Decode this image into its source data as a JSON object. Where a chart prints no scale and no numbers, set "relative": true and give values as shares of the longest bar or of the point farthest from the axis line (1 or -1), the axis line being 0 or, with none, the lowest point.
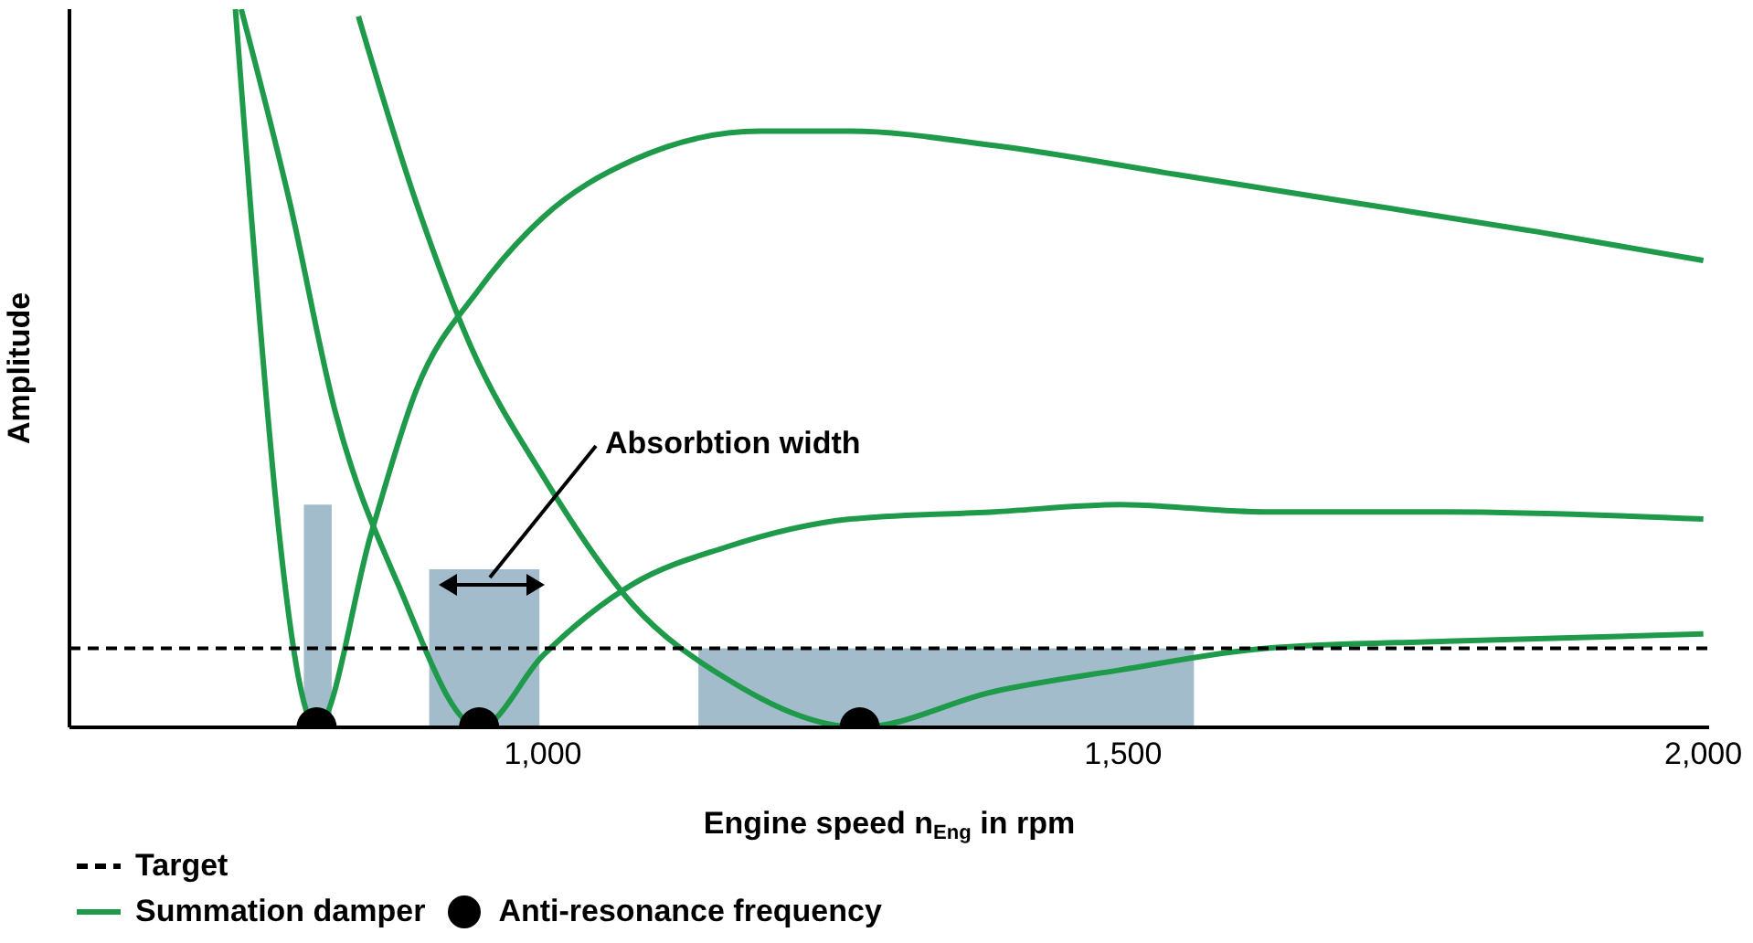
{
  "chart_data": {
    "type": "line",
    "relative": true,
    "xlabel": "Engine speed n$_{Eng}$ in rpm",
    "ylabel": "Amplitude",
    "xlim": [
      592,
      2005
    ],
    "xticks": [
      {
        "value": 1000,
        "label": "1,000"
      },
      {
        "value": 1500,
        "label": "1,500"
      },
      {
        "value": 2000,
        "label": "2,000"
      }
    ],
    "legend": "bottom left",
    "line_style": "solid",
    "annotations": [
      "Absorbtion width"
    ],
    "ref_lines": [
      {
        "axis": "y",
        "value": 0.11,
        "label": "Target",
        "color": "#000000",
        "line_style": "dashed"
      }
    ],
    "series": [
      {
        "type": "area",
        "color": "#a3bccb",
        "x": [
          794,
          818,
          860,
          902,
          997,
          1065,
          1134,
          1561
        ],
        "values": [
          0.31,
          0.31,
          null,
          0.22,
          0.22,
          null,
          0.11,
          0.11
        ]
      },
      {
        "name": "Summation damper",
        "color": "#1e9a4a",
        "x": [
          735,
          805,
          852,
          891,
          945,
          1000,
          1078,
          1187,
          1265,
          1389,
          1545,
          1701,
          1857,
          2000
        ],
        "values": [
          1.0,
          0,
          0.27,
          0.47,
          0.61,
          0.71,
          0.79,
          0.83,
          0.83,
          0.81,
          0.77,
          0.73,
          0.69,
          0.65
        ]
      },
      {
        "color": "#1e9a4a",
        "x": [
          740,
          782,
          821,
          875,
          945,
          1000,
          1078,
          1156,
          1265,
          1389,
          1498,
          1623,
          1779,
          2000
        ],
        "values": [
          1.0,
          0.73,
          0.44,
          0.2,
          0,
          0.1,
          0.2,
          0.25,
          0.29,
          0.3,
          0.31,
          0.3,
          0.3,
          0.29
        ]
      },
      {
        "color": "#1e9a4a",
        "x": [
          841,
          891,
          938,
          1000,
          1078,
          1156,
          1273,
          1389,
          1498,
          1623,
          1779,
          2000
        ],
        "values": [
          0.99,
          0.73,
          0.53,
          0.35,
          0.17,
          0.07,
          0,
          0.05,
          0.08,
          0.11,
          0.12,
          0.13
        ]
      },
      {
        "type": "scatter",
        "name": "Anti-resonance frequency",
        "color": "#000000",
        "marker": "circle",
        "x": [
          805,
          945,
          1273
        ],
        "values": [
          0,
          0,
          0
        ]
      }
    ]
  }
}
